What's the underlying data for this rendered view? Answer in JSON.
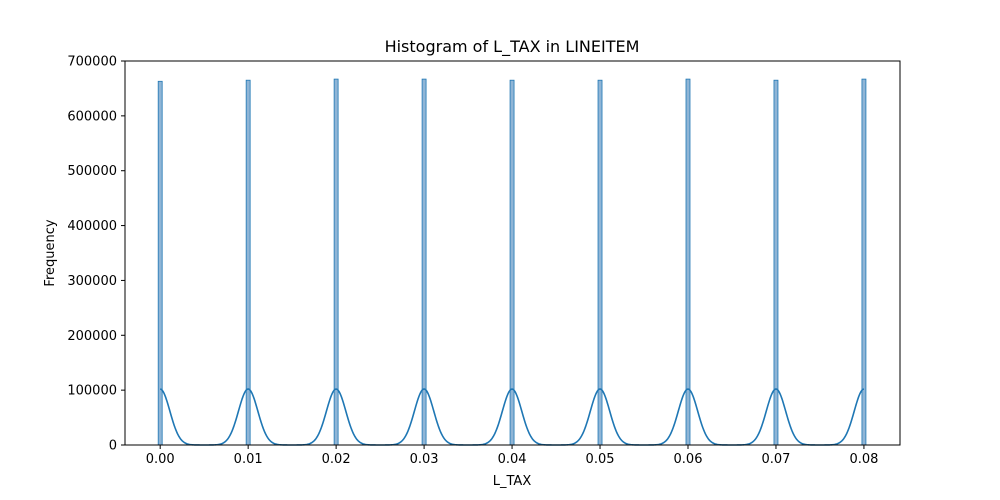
{
  "chart_data": {
    "type": "bar",
    "title": "Histogram of L_TAX in LINEITEM",
    "xlabel": "L_TAX",
    "ylabel": "Frequency",
    "xlim": [
      -0.004,
      0.0841
    ],
    "ylim": [
      0,
      700000
    ],
    "x_ticks": [
      "0.00",
      "0.01",
      "0.02",
      "0.03",
      "0.04",
      "0.05",
      "0.06",
      "0.07",
      "0.08"
    ],
    "y_ticks": [
      "0",
      "100000",
      "200000",
      "300000",
      "400000",
      "500000",
      "600000",
      "700000"
    ],
    "grid": false,
    "bar_color": "#8fb5d6",
    "bar_edge_color": "#1f77b4",
    "kde_color": "#1f77b4",
    "bars": [
      {
        "x": 0.0,
        "value": 663000
      },
      {
        "x": 0.01,
        "value": 665000
      },
      {
        "x": 0.02,
        "value": 667000
      },
      {
        "x": 0.03,
        "value": 667000
      },
      {
        "x": 0.04,
        "value": 665000
      },
      {
        "x": 0.05,
        "value": 665000
      },
      {
        "x": 0.06,
        "value": 667000
      },
      {
        "x": 0.07,
        "value": 665000
      },
      {
        "x": 0.08,
        "value": 667000
      }
    ],
    "kde_peak": 102000
  }
}
